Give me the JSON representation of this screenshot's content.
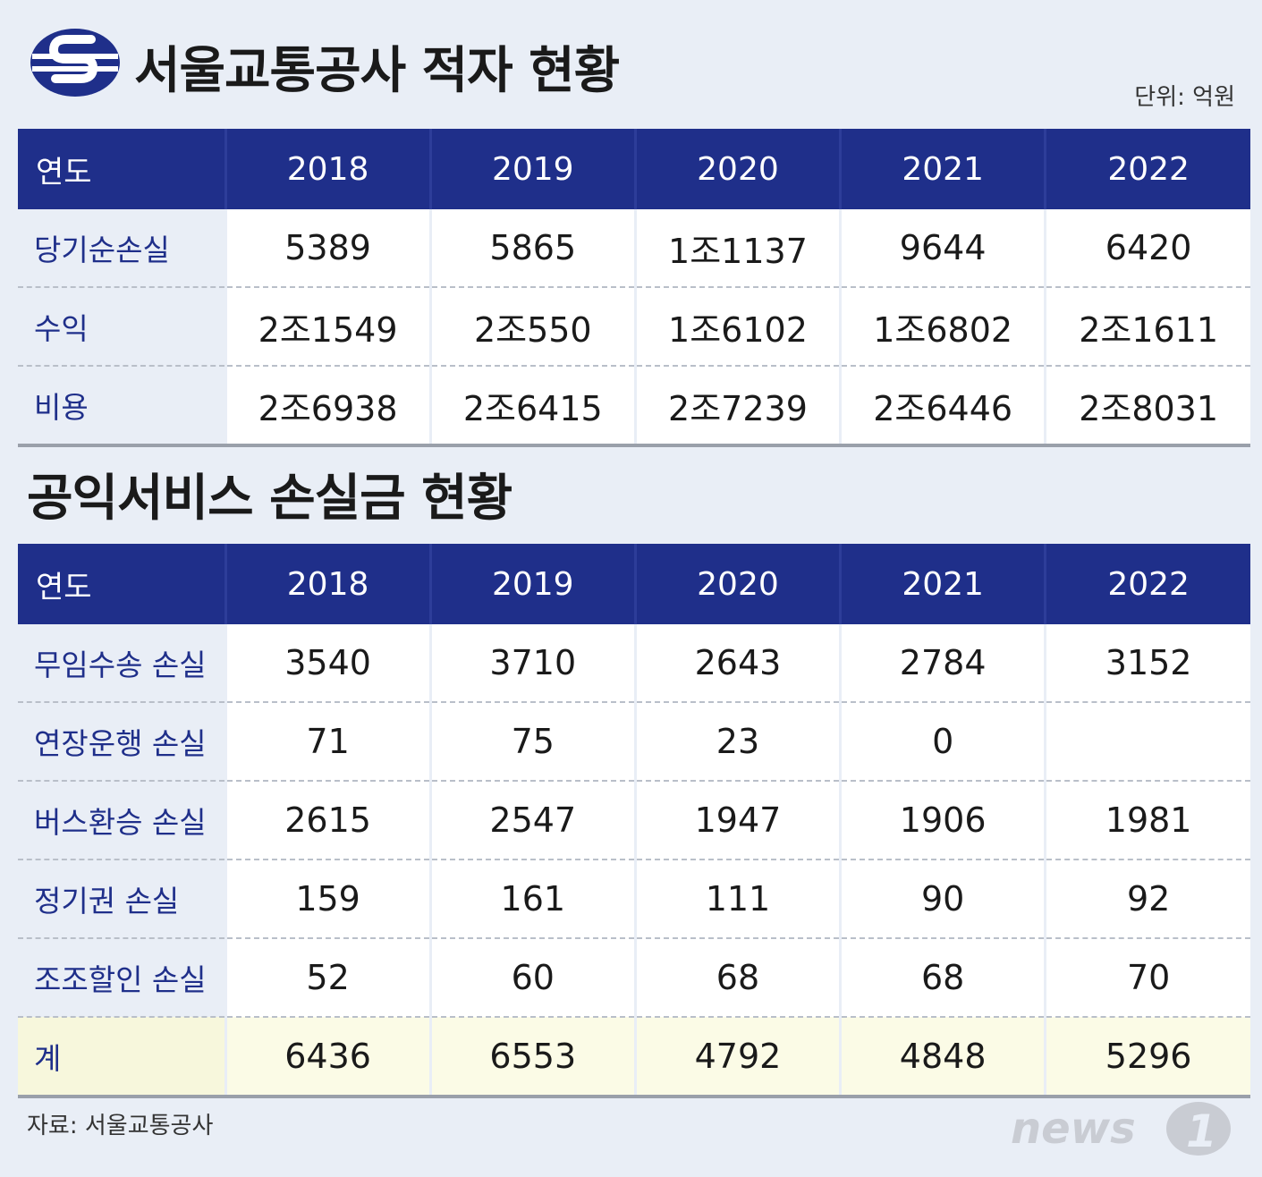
{
  "logo": {
    "icon": "seoul-metro-logo-icon",
    "color": "#1f2f8a"
  },
  "title1": "서울교통공사 적자 현황",
  "unit": "단위: 억원",
  "table1": {
    "header_label": "연도",
    "years": [
      "2018",
      "2019",
      "2020",
      "2021",
      "2022"
    ],
    "rows": [
      {
        "label": "당기순손실",
        "values": [
          "5389",
          "5865",
          "1조1137",
          "9644",
          "6420"
        ]
      },
      {
        "label": "수익",
        "values": [
          "2조1549",
          "2조550",
          "1조6102",
          "1조6802",
          "2조1611"
        ]
      },
      {
        "label": "비용",
        "values": [
          "2조6938",
          "2조6415",
          "2조7239",
          "2조6446",
          "2조8031"
        ]
      }
    ]
  },
  "title2": "공익서비스 손실금 현황",
  "table2": {
    "header_label": "연도",
    "years": [
      "2018",
      "2019",
      "2020",
      "2021",
      "2022"
    ],
    "rows": [
      {
        "label": "무임수송 손실",
        "values": [
          "3540",
          "3710",
          "2643",
          "2784",
          "3152"
        ]
      },
      {
        "label": "연장운행 손실",
        "values": [
          "71",
          "75",
          "23",
          "0",
          ""
        ]
      },
      {
        "label": "버스환승 손실",
        "values": [
          "2615",
          "2547",
          "1947",
          "1906",
          "1981"
        ]
      },
      {
        "label": "정기권 손실",
        "values": [
          "159",
          "161",
          "111",
          "90",
          "92"
        ]
      },
      {
        "label": "조조할인 손실",
        "values": [
          "52",
          "60",
          "68",
          "68",
          "70"
        ]
      },
      {
        "label": "계",
        "values": [
          "6436",
          "6553",
          "4792",
          "4848",
          "5296"
        ],
        "total": true
      }
    ]
  },
  "source": "자료: 서울교통공사",
  "brand": {
    "text": "news",
    "numeral": "1",
    "color": "#1f2f8a"
  },
  "chart_data": [
    {
      "type": "table",
      "title": "서울교통공사 적자 현황",
      "unit": "단위: 억원",
      "columns": [
        "연도",
        "2018",
        "2019",
        "2020",
        "2021",
        "2022"
      ],
      "rows": [
        [
          "당기순손실",
          "5389",
          "5865",
          "1조1137",
          "9644",
          "6420"
        ],
        [
          "수익",
          "2조1549",
          "2조550",
          "1조6102",
          "1조6802",
          "2조1611"
        ],
        [
          "비용",
          "2조6938",
          "2조6415",
          "2조7239",
          "2조6446",
          "2조8031"
        ]
      ]
    },
    {
      "type": "table",
      "title": "공익서비스 손실금 현황",
      "columns": [
        "연도",
        "2018",
        "2019",
        "2020",
        "2021",
        "2022"
      ],
      "rows": [
        [
          "무임수송 손실",
          "3540",
          "3710",
          "2643",
          "2784",
          "3152"
        ],
        [
          "연장운행 손실",
          "71",
          "75",
          "23",
          "0",
          ""
        ],
        [
          "버스환승 손실",
          "2615",
          "2547",
          "1947",
          "1906",
          "1981"
        ],
        [
          "정기권 손실",
          "159",
          "161",
          "111",
          "90",
          "92"
        ],
        [
          "조조할인 손실",
          "52",
          "60",
          "68",
          "68",
          "70"
        ],
        [
          "계",
          "6436",
          "6553",
          "4792",
          "4848",
          "5296"
        ]
      ]
    }
  ]
}
